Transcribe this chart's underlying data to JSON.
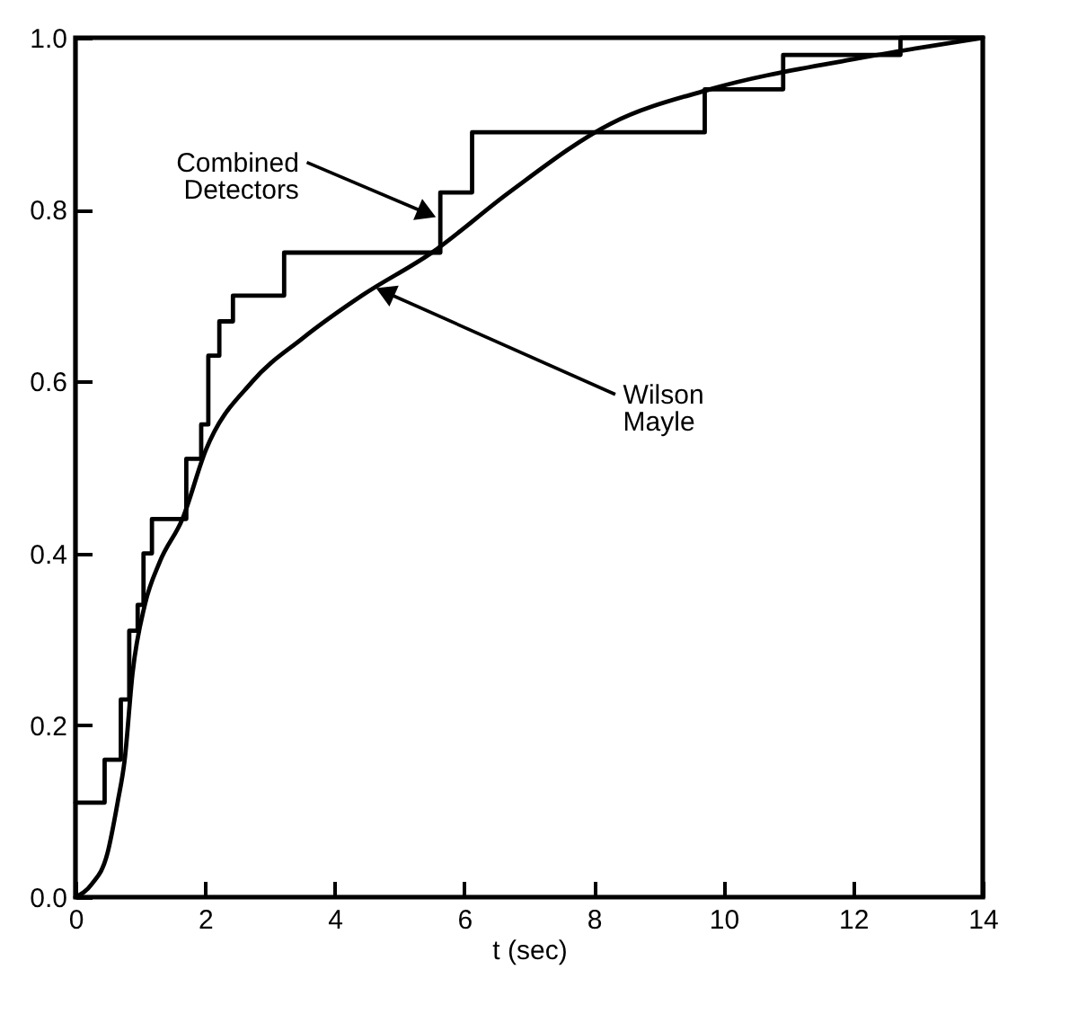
{
  "chart_data": {
    "type": "line",
    "xlabel": "t (sec)",
    "xlim": [
      0,
      14
    ],
    "ylim": [
      0,
      1
    ],
    "xticks": [
      0,
      2,
      4,
      6,
      8,
      10,
      12,
      14
    ],
    "yticks": [
      {
        "value": 0,
        "label": "0.0"
      },
      0.2,
      0.4,
      0.6,
      0.8,
      {
        "value": 1,
        "label": "1.0"
      }
    ],
    "grid": false,
    "series": [
      {
        "type": "step",
        "color": "#000000",
        "x": [
          0,
          0.45,
          0.7,
          0.83,
          0.96,
          1.05,
          1.18,
          1.71,
          1.94,
          2.05,
          2.22,
          2.43,
          3.22,
          5.63,
          6.12,
          9.71,
          10.92,
          12.73,
          14
        ],
        "values": [
          0.11,
          0.16,
          0.23,
          0.31,
          0.34,
          0.4,
          0.44,
          0.51,
          0.55,
          0.63,
          0.67,
          0.7,
          0.75,
          0.82,
          0.89,
          0.94,
          0.98,
          1.0,
          1.0
        ]
      },
      {
        "color": "#000000",
        "x": [
          0,
          0.25,
          0.49,
          0.65,
          0.76,
          0.88,
          1.07,
          1.3,
          1.65,
          2.01,
          2.73,
          3.5,
          4.42,
          5.5,
          6.69,
          8.26,
          9.79,
          12.0,
          14
        ],
        "values": [
          0,
          0.015,
          0.05,
          0.11,
          0.16,
          0.26,
          0.34,
          0.39,
          0.44,
          0.52,
          0.6,
          0.65,
          0.7,
          0.75,
          0.82,
          0.9,
          0.94,
          0.975,
          1.0
        ]
      }
    ],
    "annotations": [
      {
        "text": "Combined Detectors",
        "x": 5.6,
        "y": 0.79
      },
      {
        "text": "Wilson Mayle",
        "x": 4.6,
        "y": 0.71
      }
    ]
  }
}
